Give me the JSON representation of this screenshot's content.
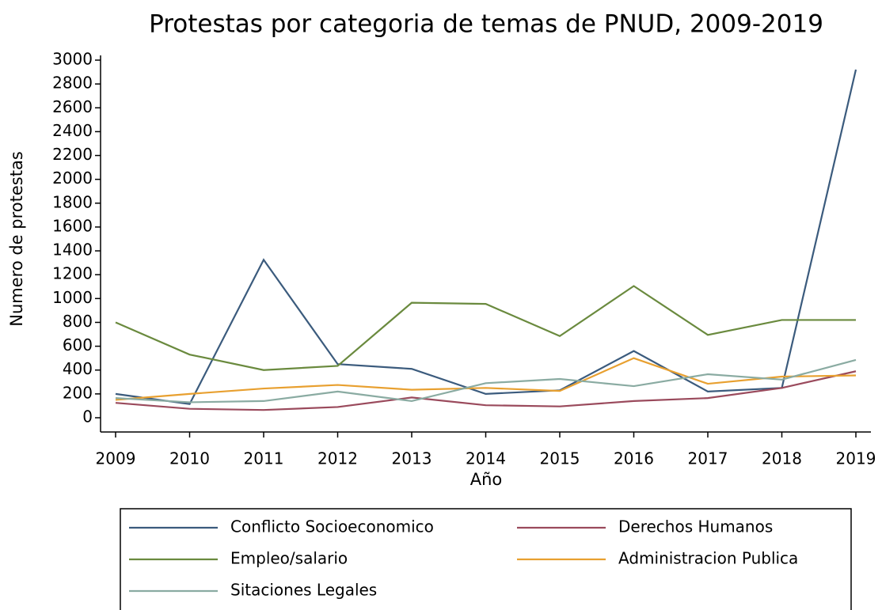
{
  "chart_data": {
    "type": "line",
    "title": "Protestas por categoria de temas de PNUD, 2009-2019",
    "x_label": "Año",
    "y_label": "Numero de protestas",
    "x": [
      2009,
      2010,
      2011,
      2012,
      2013,
      2014,
      2015,
      2016,
      2017,
      2018,
      2019
    ],
    "xlim": [
      2009,
      2019
    ],
    "xticks": [
      2009,
      2010,
      2011,
      2012,
      2013,
      2014,
      2015,
      2016,
      2017,
      2018,
      2019
    ],
    "ylim": [
      0,
      3000
    ],
    "yticks": [
      0,
      200,
      400,
      600,
      800,
      1000,
      1200,
      1400,
      1600,
      1800,
      2000,
      2200,
      2400,
      2600,
      2800,
      3000
    ],
    "legend": "bottom",
    "series": [
      {
        "name": "Conflicto Socioeconomico",
        "color": "#3b5b7d",
        "values": [
          200,
          115,
          1325,
          450,
          410,
          200,
          230,
          560,
          220,
          250,
          2920
        ]
      },
      {
        "name": "Derechos Humanos",
        "color": "#9a4a5c",
        "values": [
          125,
          75,
          65,
          90,
          170,
          105,
          95,
          140,
          165,
          250,
          390
        ]
      },
      {
        "name": "Empleo/salario",
        "color": "#6a8a3e",
        "values": [
          800,
          530,
          400,
          435,
          965,
          955,
          685,
          1105,
          695,
          820,
          820
        ]
      },
      {
        "name": "Administracion Publica",
        "color": "#e8a030",
        "values": [
          150,
          200,
          245,
          275,
          235,
          250,
          225,
          500,
          285,
          345,
          355
        ]
      },
      {
        "name": "Sitaciones Legales",
        "color": "#8aaba2",
        "values": [
          165,
          130,
          140,
          220,
          140,
          290,
          325,
          265,
          365,
          320,
          485
        ]
      }
    ]
  }
}
